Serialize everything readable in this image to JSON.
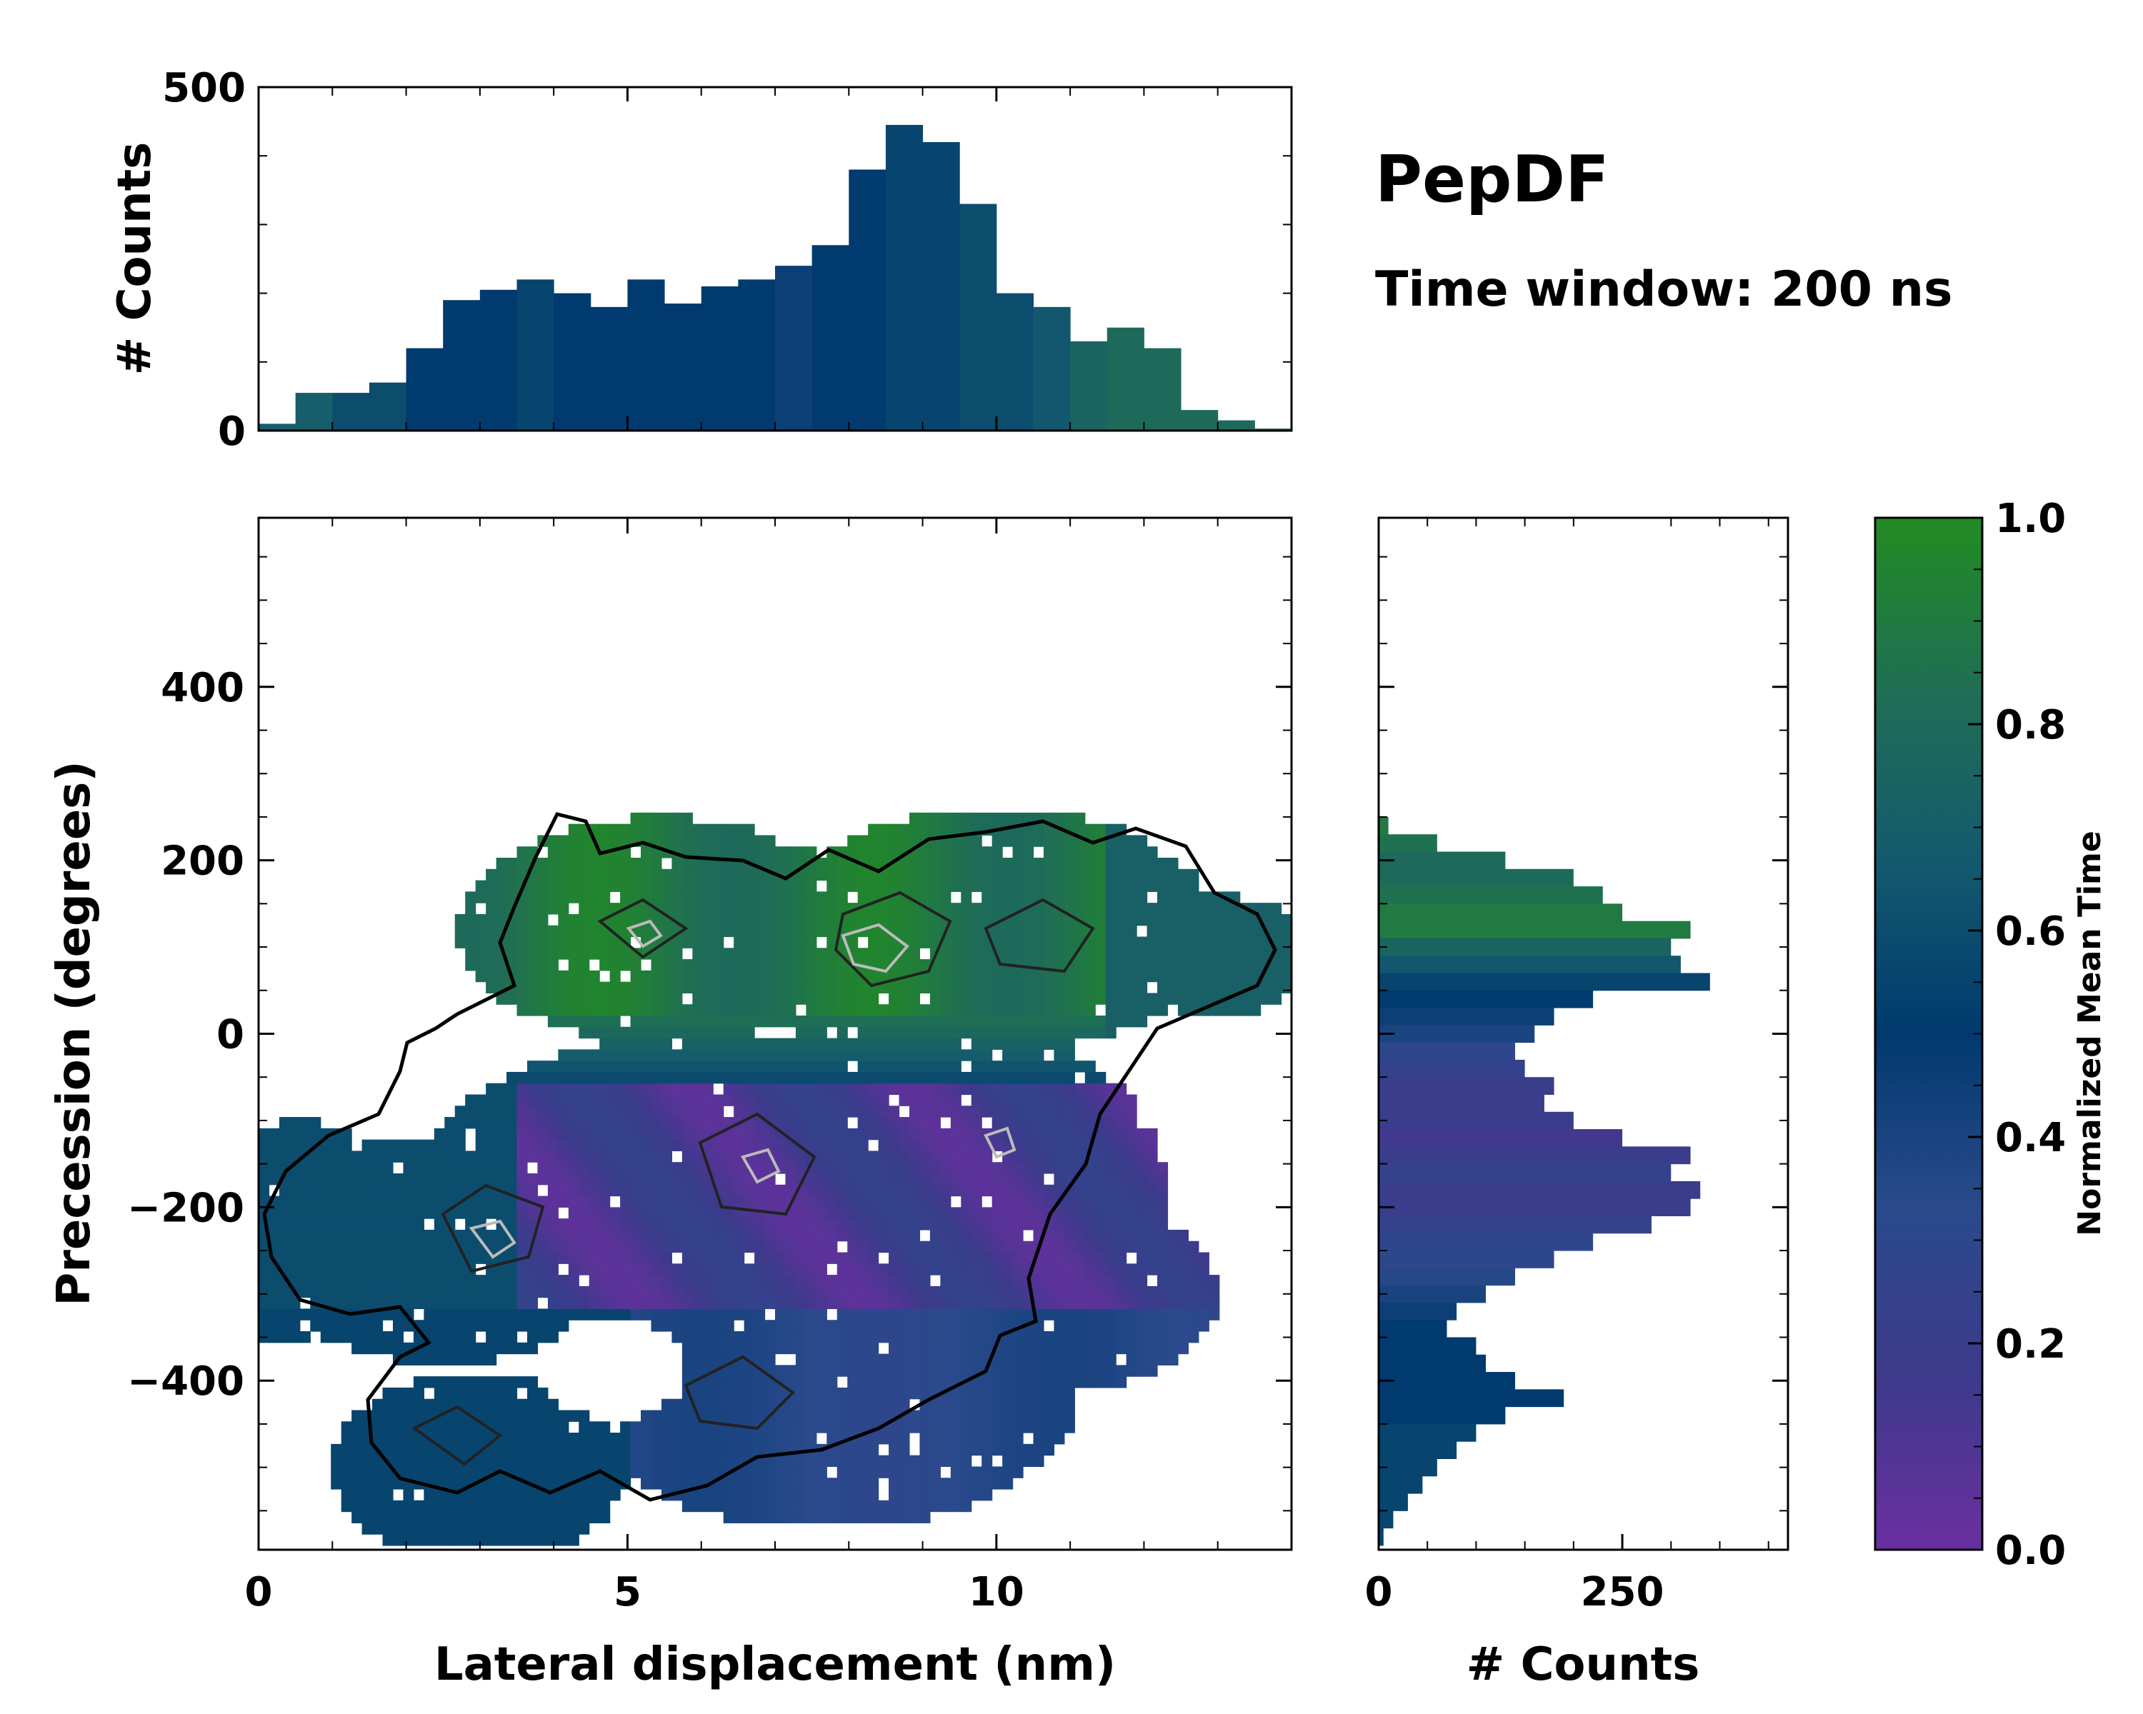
{
  "chart_data": {
    "type": "heatmap",
    "title": "PepDF",
    "subtitle": "Time window: 200 ns",
    "xlabel": "Lateral displacement (nm)",
    "ylabel": "Precession (degrees)",
    "xlim": [
      0,
      14
    ],
    "ylim": [
      -595,
      595
    ],
    "xticks": [
      0,
      5,
      10
    ],
    "yticks": [
      -400,
      -200,
      0,
      200,
      400
    ],
    "ytick_labels": [
      "−400",
      "−200",
      "0",
      "200",
      "400"
    ],
    "colorbar": {
      "label": "Normalized Mean Time",
      "range": [
        0,
        1
      ],
      "ticks": [
        "0.0",
        "0.2",
        "0.4",
        "0.6",
        "0.8",
        "1.0"
      ],
      "colors": [
        "#6a2fa0",
        "#3d3a8c",
        "#2a4a8c",
        "#013a6e",
        "#145a6e",
        "#1f6e55",
        "#228b22"
      ]
    },
    "top_histogram": {
      "ylabel": "# Counts",
      "ylim": [
        0,
        500
      ],
      "yticks": [
        0,
        500
      ],
      "x": [
        0.25,
        0.75,
        1.25,
        1.75,
        2.25,
        2.75,
        3.25,
        3.75,
        4.25,
        4.75,
        5.25,
        5.75,
        6.25,
        6.75,
        7.25,
        7.75,
        8.25,
        8.75,
        9.25,
        9.75,
        10.25,
        10.75,
        11.25,
        11.75,
        12.25,
        12.75,
        13.25,
        13.75
      ],
      "counts": [
        10,
        55,
        55,
        70,
        120,
        190,
        205,
        220,
        200,
        180,
        220,
        185,
        210,
        220,
        240,
        270,
        380,
        445,
        420,
        330,
        200,
        180,
        130,
        150,
        120,
        30,
        15,
        3
      ],
      "mean_time": [
        0.7,
        0.7,
        0.6,
        0.6,
        0.5,
        0.5,
        0.5,
        0.55,
        0.5,
        0.5,
        0.5,
        0.5,
        0.5,
        0.5,
        0.45,
        0.5,
        0.5,
        0.55,
        0.55,
        0.6,
        0.6,
        0.65,
        0.75,
        0.8,
        0.8,
        0.8,
        0.8,
        0.8
      ]
    },
    "right_histogram": {
      "xlabel": "# Counts",
      "xlim": [
        0,
        420
      ],
      "xticks": [
        0,
        250
      ],
      "y": [
        240,
        220,
        200,
        180,
        160,
        140,
        120,
        100,
        80,
        60,
        40,
        20,
        0,
        -20,
        -40,
        -60,
        -80,
        -100,
        -120,
        -140,
        -160,
        -180,
        -200,
        -220,
        -240,
        -260,
        -280,
        -300,
        -320,
        -340,
        -360,
        -380,
        -400,
        -420,
        -440,
        -460,
        -480,
        -500,
        -520,
        -540,
        -560,
        -580
      ],
      "counts": [
        10,
        60,
        130,
        200,
        230,
        250,
        320,
        300,
        310,
        340,
        220,
        180,
        160,
        140,
        150,
        180,
        170,
        200,
        250,
        320,
        300,
        330,
        320,
        280,
        220,
        180,
        140,
        110,
        80,
        70,
        100,
        110,
        140,
        190,
        130,
        100,
        80,
        60,
        45,
        30,
        15,
        5
      ],
      "mean_time": [
        0.9,
        0.85,
        0.8,
        0.8,
        0.85,
        0.9,
        0.9,
        0.75,
        0.65,
        0.55,
        0.5,
        0.45,
        0.4,
        0.3,
        0.25,
        0.2,
        0.2,
        0.2,
        0.15,
        0.2,
        0.25,
        0.2,
        0.2,
        0.25,
        0.3,
        0.3,
        0.35,
        0.4,
        0.45,
        0.5,
        0.5,
        0.5,
        0.5,
        0.5,
        0.5,
        0.55,
        0.55,
        0.55,
        0.55,
        0.55,
        0.55,
        0.55
      ]
    }
  }
}
